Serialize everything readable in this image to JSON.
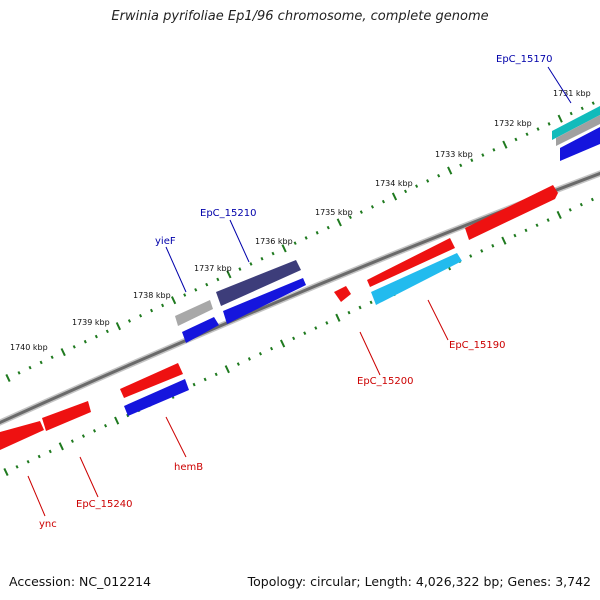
{
  "header": {
    "title": "Erwinia pyrifoliae Ep1/96 chromosome, complete genome"
  },
  "footer": {
    "accession": "Accession: NC_012214",
    "summary": "Topology: circular; Length: 4,026,322 bp; Genes: 3,742"
  },
  "scale": {
    "tick_labels": [
      "1731 kbp",
      "1732 kbp",
      "1733 kbp",
      "1734 kbp",
      "1735 kbp",
      "1736 kbp",
      "1737 kbp",
      "1738 kbp",
      "1739 kbp",
      "1740 kbp"
    ]
  },
  "genes": {
    "forward": [
      "EpC_15170",
      "EpC_15210",
      "yieF"
    ],
    "reverse": [
      "EpC_15190",
      "EpC_15200",
      "hemB",
      "EpC_15240",
      "ync"
    ]
  },
  "colors": {
    "backbone": "#7a7a7a",
    "tick": "#1f7a1f",
    "forward_label": "#0000aa",
    "reverse_label": "#cc0000",
    "gene_red": "#ee1111",
    "gene_blue": "#1515dd",
    "gene_cyan": "#22bbee",
    "gene_navy": "#3d3d7a",
    "gene_grey": "#a8a8a8",
    "gene_teal": "#11bbbb"
  }
}
